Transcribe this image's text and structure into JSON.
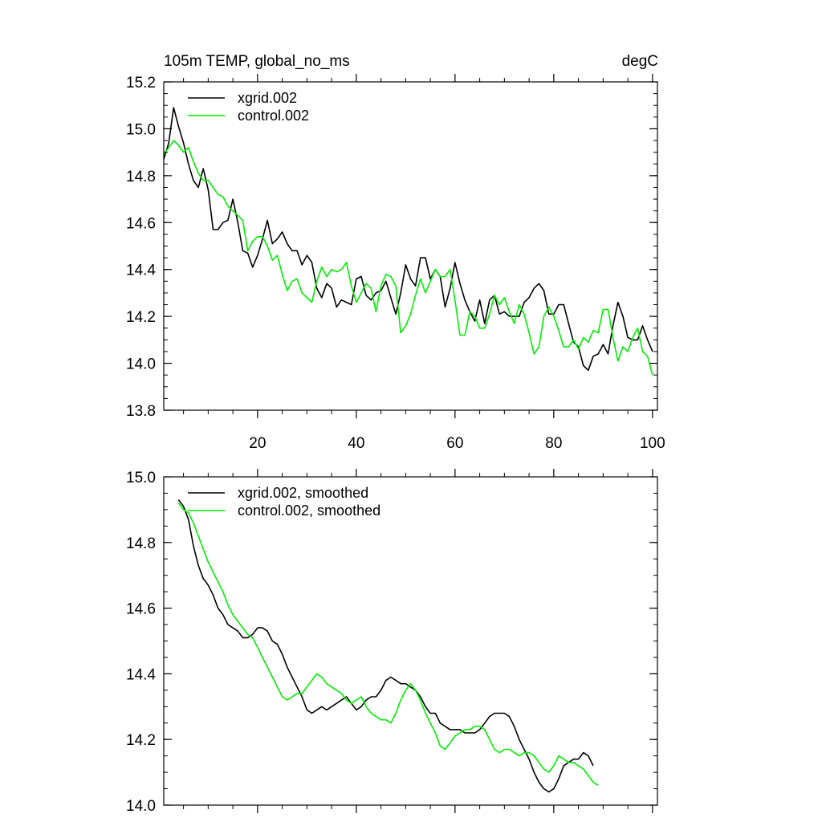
{
  "chart_data": [
    {
      "type": "line",
      "title": "105m TEMP, global_no_ms",
      "units": "degC",
      "xlabel": "",
      "ylabel": "",
      "xlim": [
        1,
        101
      ],
      "ylim": [
        13.8,
        15.2
      ],
      "yticks": [
        {
          "value": 13.8,
          "label": "13.8"
        },
        {
          "value": 14.0,
          "label": "14.0"
        },
        {
          "value": 14.2,
          "label": "14.2"
        },
        {
          "value": 14.4,
          "label": "14.4"
        },
        {
          "value": 14.6,
          "label": "14.6"
        },
        {
          "value": 14.8,
          "label": "14.8"
        },
        {
          "value": 15.0,
          "label": "15.0"
        },
        {
          "value": 15.2,
          "label": "15.2"
        }
      ],
      "xticks": [
        {
          "value": 20,
          "label": "20"
        },
        {
          "value": 40,
          "label": "40"
        },
        {
          "value": 60,
          "label": "60"
        },
        {
          "value": 80,
          "label": "80"
        },
        {
          "value": 100,
          "label": "100"
        }
      ],
      "legend_position": "top-left",
      "series": [
        {
          "name": "xgrid.002",
          "color": "#000000",
          "x_start": 1,
          "x_step": 1,
          "values": [
            14.87,
            14.94,
            15.09,
            15.01,
            14.94,
            14.85,
            14.78,
            14.75,
            14.83,
            14.74,
            14.57,
            14.57,
            14.6,
            14.61,
            14.7,
            14.6,
            14.48,
            14.47,
            14.41,
            14.46,
            14.53,
            14.61,
            14.51,
            14.53,
            14.56,
            14.51,
            14.48,
            14.48,
            14.42,
            14.46,
            14.43,
            14.32,
            14.28,
            14.34,
            14.32,
            14.24,
            14.27,
            14.26,
            14.25,
            14.36,
            14.37,
            14.29,
            14.27,
            14.3,
            14.31,
            14.35,
            14.28,
            14.21,
            14.3,
            14.42,
            14.36,
            14.33,
            14.45,
            14.45,
            14.36,
            14.4,
            14.37,
            14.24,
            14.32,
            14.43,
            14.34,
            14.27,
            14.22,
            14.18,
            14.27,
            14.17,
            14.27,
            14.29,
            14.21,
            14.22,
            14.2,
            14.2,
            14.2,
            14.26,
            14.28,
            14.32,
            14.34,
            14.31,
            14.21,
            14.21,
            14.25,
            14.25,
            14.17,
            14.09,
            14.07,
            13.99,
            13.97,
            14.03,
            14.04,
            14.08,
            14.04,
            14.16,
            14.26,
            14.2,
            14.11,
            14.1,
            14.1,
            14.16,
            14.1,
            14.05
          ]
        },
        {
          "name": "control.002",
          "color": "#00ee00",
          "x_start": 1,
          "x_step": 1,
          "values": [
            14.89,
            14.92,
            14.95,
            14.93,
            14.9,
            14.92,
            14.86,
            14.81,
            14.78,
            14.78,
            14.75,
            14.72,
            14.71,
            14.67,
            14.65,
            14.63,
            14.61,
            14.48,
            14.52,
            14.54,
            14.54,
            14.5,
            14.44,
            14.46,
            14.38,
            14.31,
            14.35,
            14.36,
            14.3,
            14.28,
            14.26,
            14.35,
            14.41,
            14.37,
            14.4,
            14.39,
            14.4,
            14.43,
            14.33,
            14.26,
            14.3,
            14.34,
            14.32,
            14.22,
            14.33,
            14.38,
            14.37,
            14.33,
            14.13,
            14.16,
            14.21,
            14.29,
            14.36,
            14.3,
            14.35,
            14.4,
            14.37,
            14.37,
            14.4,
            14.27,
            14.12,
            14.12,
            14.22,
            14.2,
            14.15,
            14.15,
            14.21,
            14.29,
            14.25,
            14.28,
            14.22,
            14.17,
            14.25,
            14.21,
            14.13,
            14.04,
            14.07,
            14.2,
            14.24,
            14.2,
            14.14,
            14.07,
            14.07,
            14.1,
            14.06,
            14.11,
            14.09,
            14.14,
            14.13,
            14.23,
            14.23,
            14.11,
            14.01,
            14.07,
            14.05,
            14.11,
            14.15,
            14.05,
            14.03,
            13.95
          ]
        }
      ]
    },
    {
      "type": "line",
      "title": "",
      "xlabel": "",
      "ylabel": "",
      "xlim": [
        1,
        101
      ],
      "ylim": [
        14.0,
        15.0
      ],
      "yticks": [
        {
          "value": 14.0,
          "label": "14.0"
        },
        {
          "value": 14.2,
          "label": "14.2"
        },
        {
          "value": 14.4,
          "label": "14.4"
        },
        {
          "value": 14.6,
          "label": "14.6"
        },
        {
          "value": 14.8,
          "label": "14.8"
        },
        {
          "value": 15.0,
          "label": "15.0"
        }
      ],
      "xticks": [],
      "legend_position": "top-left",
      "series": [
        {
          "name": "xgrid.002, smoothed",
          "color": "#000000",
          "x_start": 4,
          "x_step": 1,
          "values": [
            14.93,
            14.91,
            14.87,
            14.79,
            14.73,
            14.69,
            14.67,
            14.64,
            14.6,
            14.58,
            14.55,
            14.54,
            14.53,
            14.51,
            14.51,
            14.52,
            14.54,
            14.54,
            14.53,
            14.5,
            14.49,
            14.46,
            14.42,
            14.39,
            14.36,
            14.33,
            14.29,
            14.28,
            14.29,
            14.3,
            14.29,
            14.3,
            14.31,
            14.32,
            14.33,
            14.31,
            14.29,
            14.3,
            14.32,
            14.33,
            14.33,
            14.35,
            14.38,
            14.39,
            14.38,
            14.37,
            14.37,
            14.36,
            14.35,
            14.33,
            14.3,
            14.28,
            14.28,
            14.25,
            14.24,
            14.23,
            14.23,
            14.23,
            14.22,
            14.22,
            14.22,
            14.23,
            14.25,
            14.27,
            14.28,
            14.28,
            14.28,
            14.27,
            14.24,
            14.2,
            14.17,
            14.14,
            14.1,
            14.07,
            14.05,
            14.04,
            14.05,
            14.08,
            14.12,
            14.13,
            14.14,
            14.14,
            14.16,
            14.15,
            14.12
          ]
        },
        {
          "name": "control.002, smoothed",
          "color": "#00ee00",
          "x_start": 4,
          "x_step": 1,
          "values": [
            14.92,
            14.9,
            14.89,
            14.86,
            14.82,
            14.78,
            14.74,
            14.71,
            14.68,
            14.65,
            14.61,
            14.58,
            14.56,
            14.54,
            14.52,
            14.51,
            14.48,
            14.45,
            14.42,
            14.39,
            14.36,
            14.33,
            14.32,
            14.33,
            14.34,
            14.34,
            14.36,
            14.38,
            14.4,
            14.39,
            14.37,
            14.36,
            14.35,
            14.34,
            14.32,
            14.31,
            14.32,
            14.33,
            14.3,
            14.28,
            14.27,
            14.26,
            14.26,
            14.25,
            14.28,
            14.32,
            14.35,
            14.37,
            14.35,
            14.32,
            14.28,
            14.25,
            14.22,
            14.18,
            14.17,
            14.19,
            14.21,
            14.22,
            14.23,
            14.23,
            14.24,
            14.24,
            14.23,
            14.2,
            14.17,
            14.16,
            14.17,
            14.17,
            14.16,
            14.15,
            14.16,
            14.16,
            14.15,
            14.13,
            14.11,
            14.1,
            14.12,
            14.15,
            14.14,
            14.13,
            14.13,
            14.12,
            14.11,
            14.09,
            14.07,
            14.06
          ]
        }
      ]
    }
  ]
}
